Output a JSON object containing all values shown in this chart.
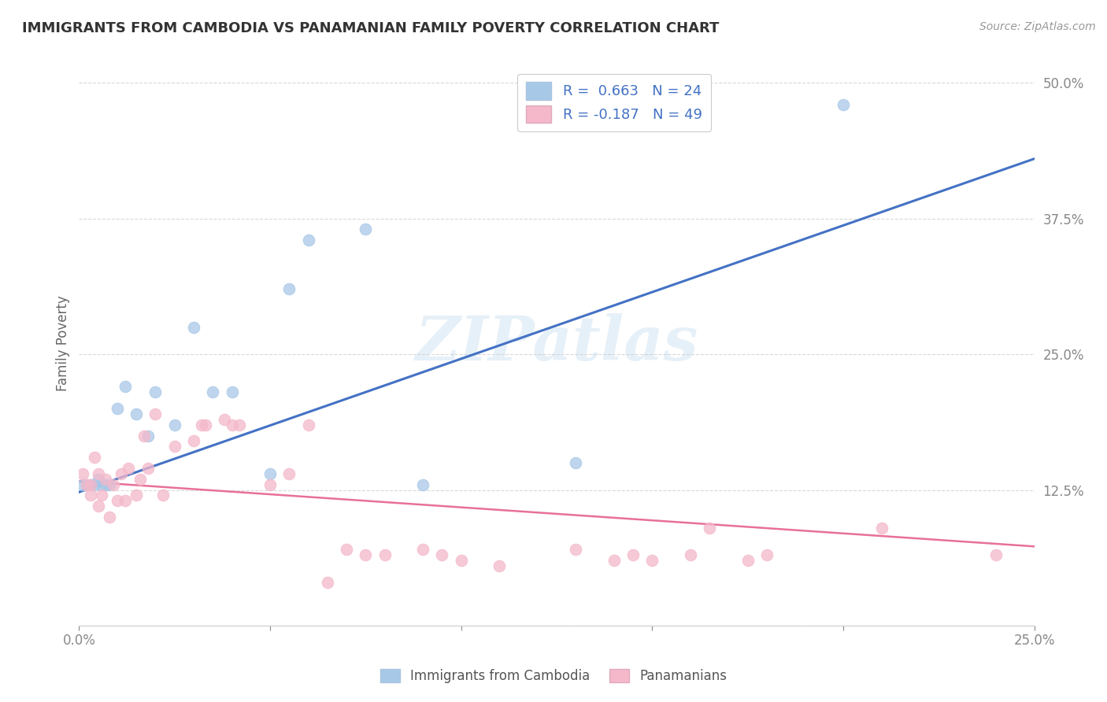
{
  "title": "IMMIGRANTS FROM CAMBODIA VS PANAMANIAN FAMILY POVERTY CORRELATION CHART",
  "source": "Source: ZipAtlas.com",
  "ylabel": "Family Poverty",
  "xlim": [
    0.0,
    0.25
  ],
  "ylim": [
    0.0,
    0.52
  ],
  "xticks": [
    0.0,
    0.05,
    0.1,
    0.15,
    0.2,
    0.25
  ],
  "xtick_labels": [
    "0.0%",
    "",
    "",
    "",
    "",
    "25.0%"
  ],
  "ytick_labels": [
    "",
    "12.5%",
    "25.0%",
    "37.5%",
    "50.0%"
  ],
  "yticks": [
    0.0,
    0.125,
    0.25,
    0.375,
    0.5
  ],
  "r_cambodia": 0.663,
  "n_cambodia": 24,
  "r_panamanian": -0.187,
  "n_panamanian": 49,
  "color_cambodia": "#a8c8e8",
  "color_panamanian": "#f4b8ca",
  "line_color_cambodia": "#4472c4",
  "line_color_panamanian": "#e8709a",
  "scatter_cambodia_x": [
    0.001,
    0.002,
    0.003,
    0.004,
    0.005,
    0.006,
    0.007,
    0.008,
    0.01,
    0.012,
    0.015,
    0.018,
    0.02,
    0.025,
    0.03,
    0.035,
    0.04,
    0.05,
    0.055,
    0.06,
    0.075,
    0.09,
    0.13,
    0.2
  ],
  "scatter_cambodia_y": [
    0.13,
    0.13,
    0.13,
    0.13,
    0.135,
    0.13,
    0.13,
    0.13,
    0.2,
    0.22,
    0.195,
    0.175,
    0.215,
    0.185,
    0.275,
    0.215,
    0.215,
    0.14,
    0.31,
    0.355,
    0.365,
    0.13,
    0.15,
    0.48
  ],
  "scatter_panamanian_x": [
    0.001,
    0.002,
    0.003,
    0.003,
    0.004,
    0.005,
    0.005,
    0.006,
    0.007,
    0.008,
    0.009,
    0.01,
    0.011,
    0.012,
    0.013,
    0.015,
    0.016,
    0.017,
    0.018,
    0.02,
    0.022,
    0.025,
    0.03,
    0.032,
    0.033,
    0.038,
    0.04,
    0.042,
    0.05,
    0.055,
    0.06,
    0.065,
    0.07,
    0.075,
    0.08,
    0.09,
    0.095,
    0.1,
    0.11,
    0.13,
    0.14,
    0.145,
    0.15,
    0.16,
    0.165,
    0.175,
    0.18,
    0.21,
    0.24
  ],
  "scatter_panamanian_y": [
    0.14,
    0.13,
    0.12,
    0.13,
    0.155,
    0.14,
    0.11,
    0.12,
    0.135,
    0.1,
    0.13,
    0.115,
    0.14,
    0.115,
    0.145,
    0.12,
    0.135,
    0.175,
    0.145,
    0.195,
    0.12,
    0.165,
    0.17,
    0.185,
    0.185,
    0.19,
    0.185,
    0.185,
    0.13,
    0.14,
    0.185,
    0.04,
    0.07,
    0.065,
    0.065,
    0.07,
    0.065,
    0.06,
    0.055,
    0.07,
    0.06,
    0.065,
    0.06,
    0.065,
    0.09,
    0.06,
    0.065,
    0.09,
    0.065
  ],
  "line_cam_x0": 0.0,
  "line_cam_y0": 0.123,
  "line_cam_x1": 0.25,
  "line_cam_y1": 0.43,
  "line_pan_x0": 0.0,
  "line_pan_y0": 0.133,
  "line_pan_x1": 0.25,
  "line_pan_y1": 0.073,
  "watermark": "ZIPatlas",
  "background_color": "#ffffff",
  "grid_color": "#d0d0d0",
  "legend_labels_cambodia": "Immigrants from Cambodia",
  "legend_labels_panamanian": "Panamanians"
}
